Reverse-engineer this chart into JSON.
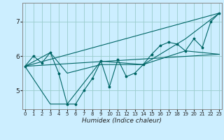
{
  "title": "",
  "xlabel": "Humidex (Indice chaleur)",
  "ylabel": "",
  "bg_color": "#cceeff",
  "grid_color": "#99cccc",
  "line_color": "#006666",
  "x_ticks": [
    0,
    1,
    2,
    3,
    4,
    5,
    6,
    7,
    8,
    9,
    10,
    11,
    12,
    13,
    14,
    15,
    16,
    17,
    18,
    19,
    20,
    21,
    22,
    23
  ],
  "y_ticks": [
    5,
    6,
    7
  ],
  "xlim": [
    -0.3,
    23.3
  ],
  "ylim": [
    4.45,
    7.55
  ],
  "data_points": [
    [
      0,
      5.7
    ],
    [
      1,
      6.0
    ],
    [
      2,
      5.8
    ],
    [
      3,
      6.1
    ],
    [
      4,
      5.5
    ],
    [
      5,
      4.6
    ],
    [
      6,
      4.6
    ],
    [
      7,
      5.0
    ],
    [
      8,
      5.35
    ],
    [
      9,
      5.85
    ],
    [
      10,
      5.1
    ],
    [
      11,
      5.9
    ],
    [
      12,
      5.4
    ],
    [
      13,
      5.5
    ],
    [
      14,
      5.75
    ],
    [
      15,
      6.05
    ],
    [
      16,
      6.3
    ],
    [
      17,
      6.4
    ],
    [
      18,
      6.35
    ],
    [
      19,
      6.15
    ],
    [
      20,
      6.5
    ],
    [
      21,
      6.25
    ],
    [
      22,
      7.0
    ],
    [
      23,
      7.25
    ]
  ],
  "extra_lines": [
    [
      [
        0,
        5.7
      ],
      [
        23,
        6.05
      ]
    ],
    [
      [
        0,
        5.7
      ],
      [
        23,
        7.25
      ]
    ],
    [
      [
        0,
        5.7
      ],
      [
        3,
        6.1
      ],
      [
        5,
        5.5
      ],
      [
        9,
        5.75
      ],
      [
        14,
        5.75
      ],
      [
        19,
        6.15
      ],
      [
        23,
        6.05
      ]
    ],
    [
      [
        0,
        5.7
      ],
      [
        3,
        4.6
      ],
      [
        5,
        4.6
      ],
      [
        9,
        5.85
      ],
      [
        14,
        5.75
      ],
      [
        19,
        6.5
      ],
      [
        23,
        7.25
      ]
    ]
  ]
}
